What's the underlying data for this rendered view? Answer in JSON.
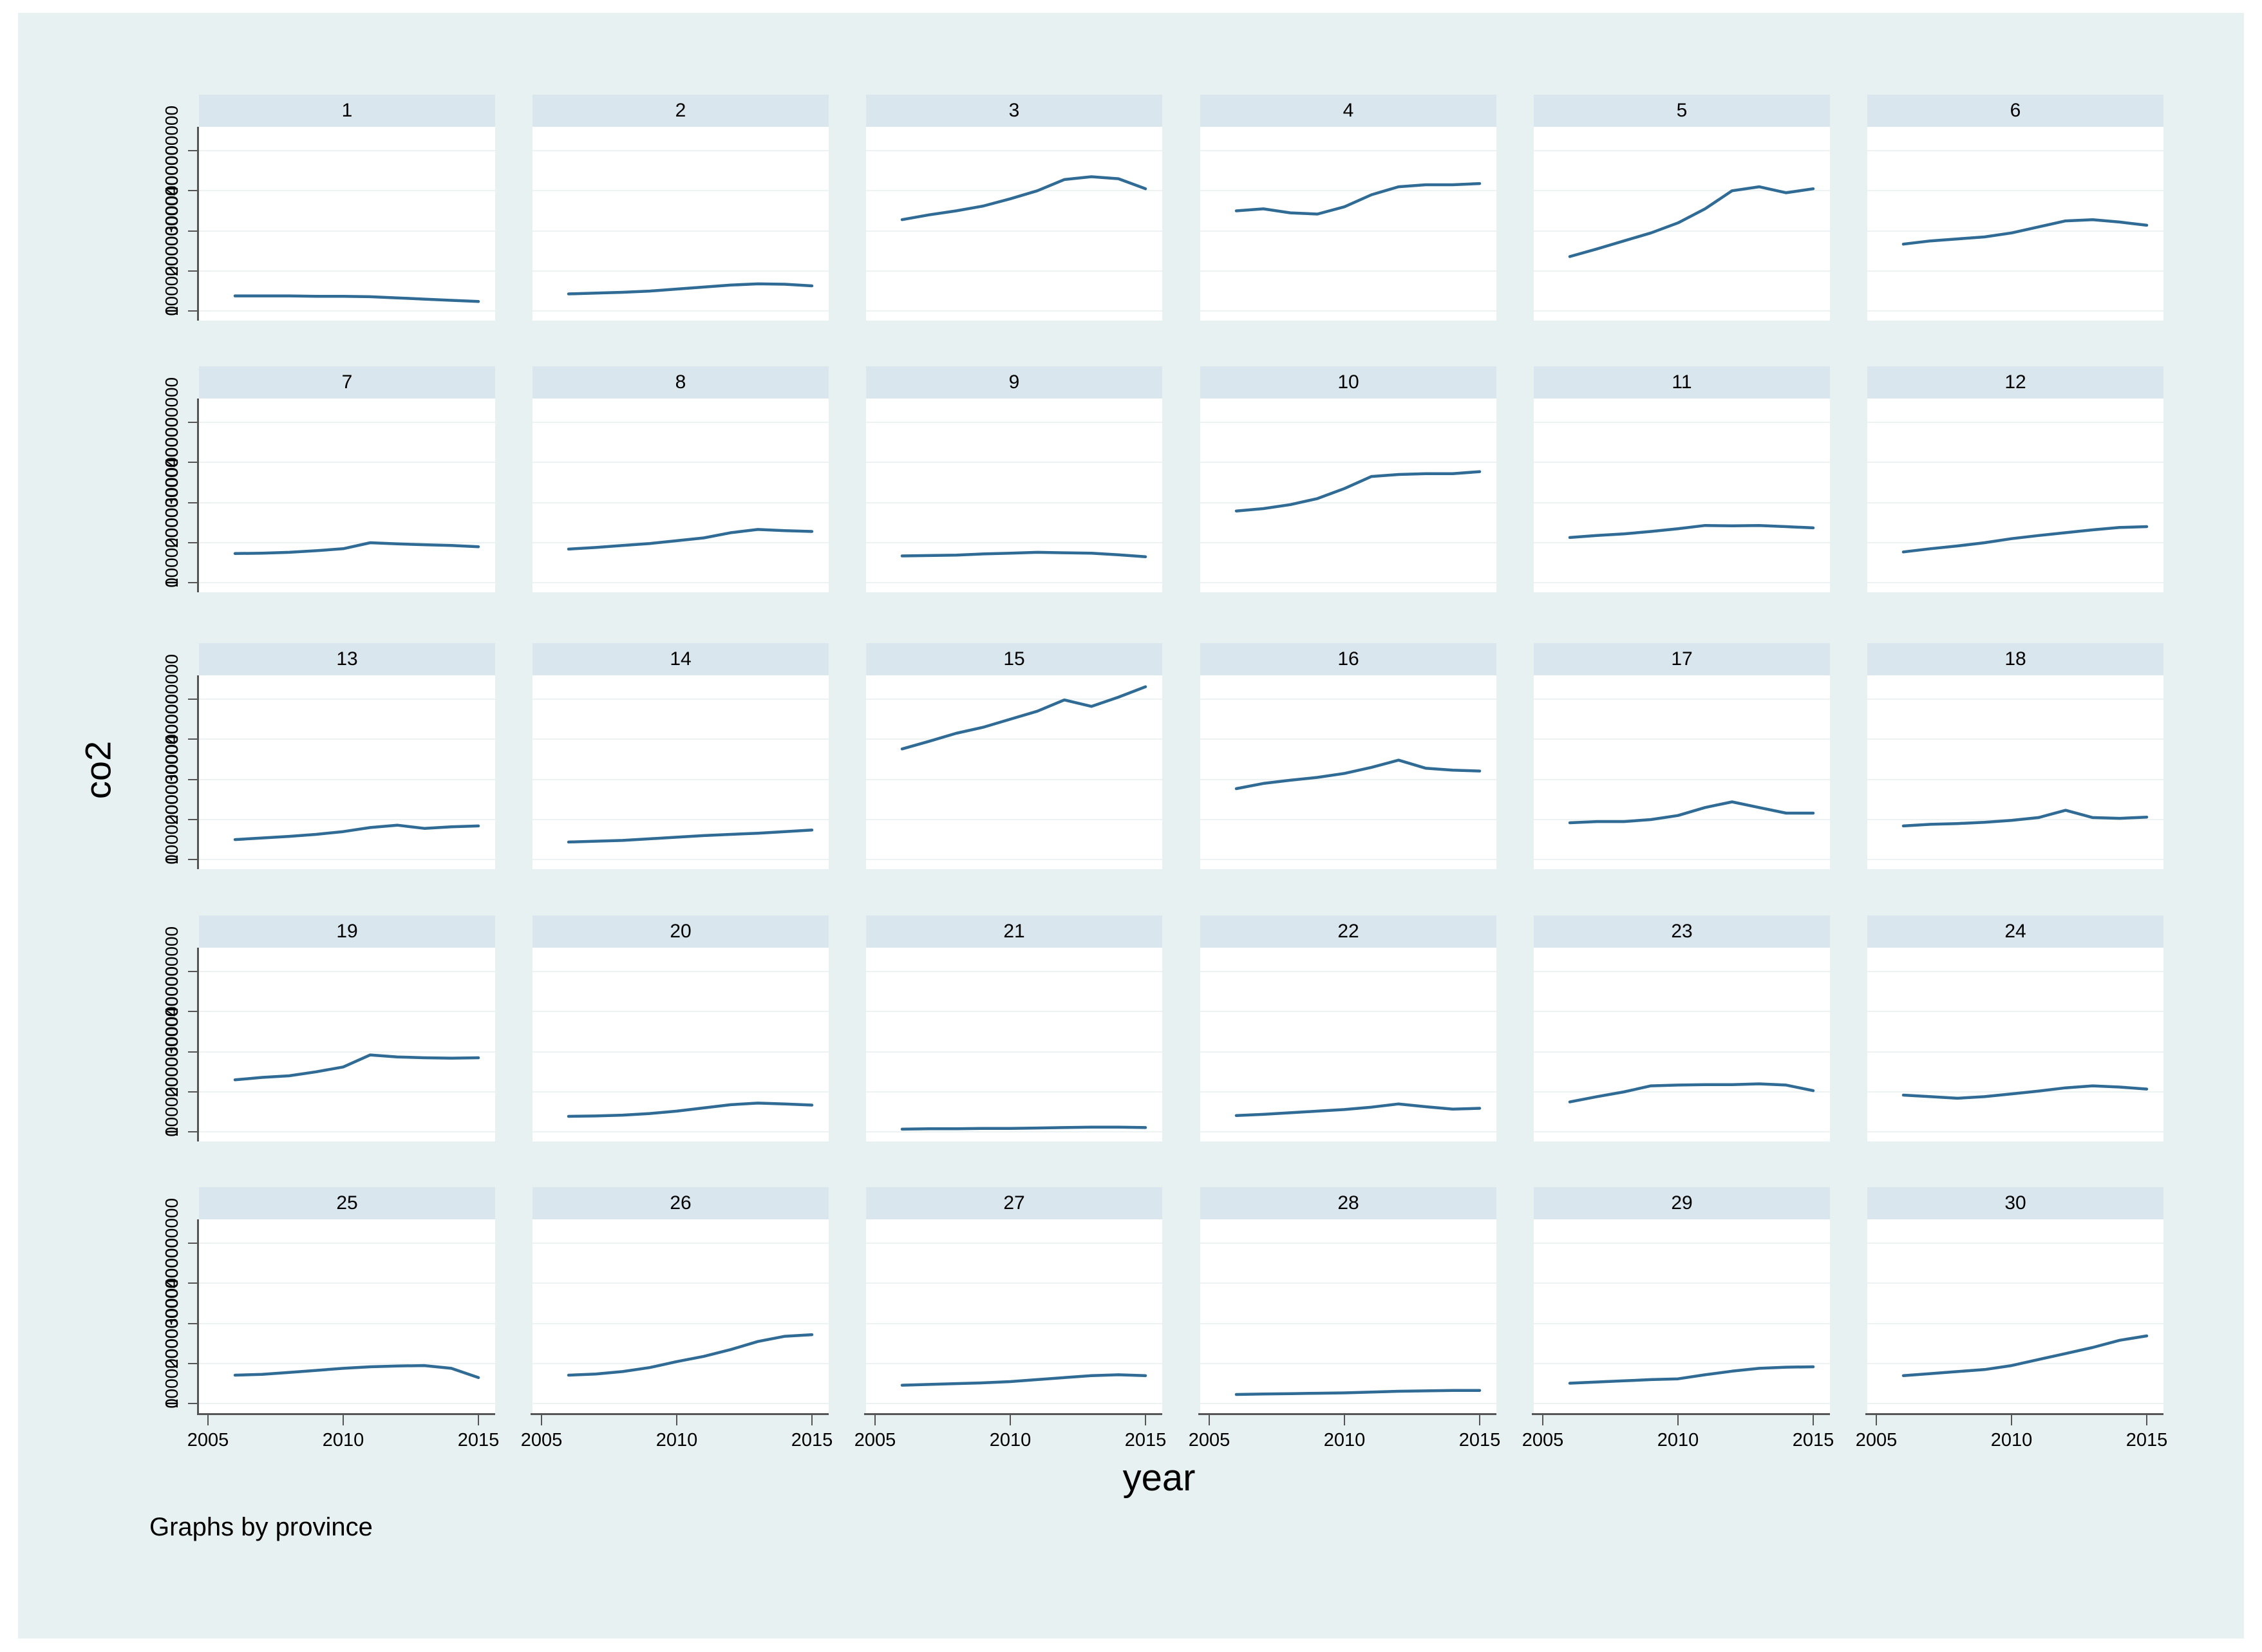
{
  "note": "Graphs by province",
  "ylabel": "co2",
  "xlabel": "year",
  "y_tick_labels": [
    "0",
    "100000000",
    "200000000",
    "300000000",
    "400000000"
  ],
  "x_tick_labels": [
    "2005",
    "2010",
    "2015"
  ],
  "colors": {
    "figure_background": "#e8f1f2",
    "plot_background": "#ffffff",
    "panel_header_background": "#d9e6ee",
    "gridline": "#edf2f3",
    "axis": "#555555",
    "line": "#2f6b94",
    "text": "#000000"
  },
  "chart_data": {
    "type": "line",
    "facet_by": "province",
    "facet_layout": {
      "rows": 5,
      "cols": 6
    },
    "x": [
      2006,
      2007,
      2008,
      2009,
      2010,
      2011,
      2012,
      2013,
      2014,
      2015
    ],
    "xlabel": "year",
    "ylabel": "co2",
    "xlim": [
      2005,
      2015.6
    ],
    "ylim": [
      0,
      460000000
    ],
    "y_ticks": [
      0,
      100000000,
      200000000,
      300000000,
      400000000
    ],
    "x_ticks": [
      2005,
      2010,
      2015
    ],
    "grid": true,
    "series": [
      {
        "name": "1",
        "values": [
          38000000,
          38000000,
          38000000,
          37000000,
          37000000,
          36000000,
          33000000,
          30000000,
          27000000,
          24000000
        ]
      },
      {
        "name": "2",
        "values": [
          43000000,
          45000000,
          47000000,
          50000000,
          55000000,
          60000000,
          65000000,
          68000000,
          67000000,
          63000000
        ]
      },
      {
        "name": "3",
        "values": [
          228000000,
          240000000,
          250000000,
          262000000,
          280000000,
          300000000,
          328000000,
          335000000,
          330000000,
          305000000
        ]
      },
      {
        "name": "4",
        "values": [
          250000000,
          255000000,
          245000000,
          242000000,
          260000000,
          290000000,
          310000000,
          315000000,
          315000000,
          318000000
        ]
      },
      {
        "name": "5",
        "values": [
          136000000,
          155000000,
          175000000,
          195000000,
          220000000,
          255000000,
          300000000,
          310000000,
          295000000,
          305000000
        ]
      },
      {
        "name": "6",
        "values": [
          167000000,
          175000000,
          180000000,
          185000000,
          195000000,
          210000000,
          225000000,
          228000000,
          222000000,
          214000000
        ]
      },
      {
        "name": "7",
        "values": [
          73000000,
          74000000,
          76000000,
          80000000,
          85000000,
          100000000,
          97000000,
          95000000,
          93000000,
          90000000
        ]
      },
      {
        "name": "8",
        "values": [
          84000000,
          88000000,
          93000000,
          98000000,
          105000000,
          112000000,
          125000000,
          133000000,
          130000000,
          128000000
        ]
      },
      {
        "name": "9",
        "values": [
          67000000,
          68000000,
          69000000,
          72000000,
          74000000,
          76000000,
          75000000,
          74000000,
          70000000,
          65000000
        ]
      },
      {
        "name": "10",
        "values": [
          179000000,
          185000000,
          195000000,
          210000000,
          235000000,
          265000000,
          270000000,
          272000000,
          272000000,
          277000000
        ]
      },
      {
        "name": "11",
        "values": [
          113000000,
          118000000,
          122000000,
          128000000,
          135000000,
          143000000,
          142000000,
          143000000,
          140000000,
          137000000
        ]
      },
      {
        "name": "12",
        "values": [
          77000000,
          85000000,
          92000000,
          100000000,
          110000000,
          118000000,
          125000000,
          132000000,
          138000000,
          140000000
        ]
      },
      {
        "name": "13",
        "values": [
          50000000,
          54000000,
          58000000,
          63000000,
          70000000,
          80000000,
          86000000,
          78000000,
          82000000,
          84000000
        ]
      },
      {
        "name": "14",
        "values": [
          44000000,
          46000000,
          48000000,
          52000000,
          56000000,
          60000000,
          63000000,
          66000000,
          70000000,
          74000000
        ]
      },
      {
        "name": "15",
        "values": [
          276000000,
          295000000,
          315000000,
          330000000,
          350000000,
          370000000,
          398000000,
          382000000,
          405000000,
          431000000
        ]
      },
      {
        "name": "16",
        "values": [
          177000000,
          190000000,
          198000000,
          205000000,
          215000000,
          230000000,
          248000000,
          228000000,
          223000000,
          221000000
        ]
      },
      {
        "name": "17",
        "values": [
          92000000,
          95000000,
          95000000,
          100000000,
          110000000,
          130000000,
          144000000,
          130000000,
          116000000,
          116000000
        ]
      },
      {
        "name": "18",
        "values": [
          84000000,
          88000000,
          90000000,
          93000000,
          98000000,
          105000000,
          123000000,
          105000000,
          103000000,
          106000000
        ]
      },
      {
        "name": "19",
        "values": [
          130000000,
          136000000,
          140000000,
          150000000,
          162000000,
          192000000,
          187000000,
          185000000,
          184000000,
          185000000
        ]
      },
      {
        "name": "20",
        "values": [
          39000000,
          40000000,
          42000000,
          46000000,
          52000000,
          60000000,
          68000000,
          72000000,
          70000000,
          67000000
        ]
      },
      {
        "name": "21",
        "values": [
          7000000,
          8000000,
          8000000,
          9000000,
          9000000,
          10000000,
          11000000,
          12000000,
          12000000,
          11000000
        ]
      },
      {
        "name": "22",
        "values": [
          41000000,
          44000000,
          48000000,
          52000000,
          56000000,
          62000000,
          70000000,
          63000000,
          57000000,
          59000000
        ]
      },
      {
        "name": "23",
        "values": [
          75000000,
          88000000,
          100000000,
          115000000,
          117000000,
          118000000,
          118000000,
          120000000,
          117000000,
          103000000
        ]
      },
      {
        "name": "24",
        "values": [
          92000000,
          88000000,
          84000000,
          88000000,
          95000000,
          102000000,
          110000000,
          115000000,
          112000000,
          107000000
        ]
      },
      {
        "name": "25",
        "values": [
          71000000,
          73000000,
          78000000,
          83000000,
          88000000,
          92000000,
          94000000,
          95000000,
          88000000,
          65000000
        ]
      },
      {
        "name": "26",
        "values": [
          71000000,
          74000000,
          80000000,
          90000000,
          105000000,
          118000000,
          135000000,
          155000000,
          168000000,
          172000000
        ]
      },
      {
        "name": "27",
        "values": [
          46000000,
          48000000,
          50000000,
          52000000,
          55000000,
          60000000,
          65000000,
          70000000,
          72000000,
          70000000
        ]
      },
      {
        "name": "28",
        "values": [
          23000000,
          24000000,
          25000000,
          26000000,
          27000000,
          29000000,
          31000000,
          32000000,
          33000000,
          33000000
        ]
      },
      {
        "name": "29",
        "values": [
          51000000,
          54000000,
          57000000,
          60000000,
          62000000,
          72000000,
          81000000,
          88000000,
          91000000,
          92000000
        ]
      },
      {
        "name": "30",
        "values": [
          70000000,
          75000000,
          80000000,
          85000000,
          95000000,
          110000000,
          125000000,
          140000000,
          158000000,
          169000000
        ]
      }
    ]
  }
}
